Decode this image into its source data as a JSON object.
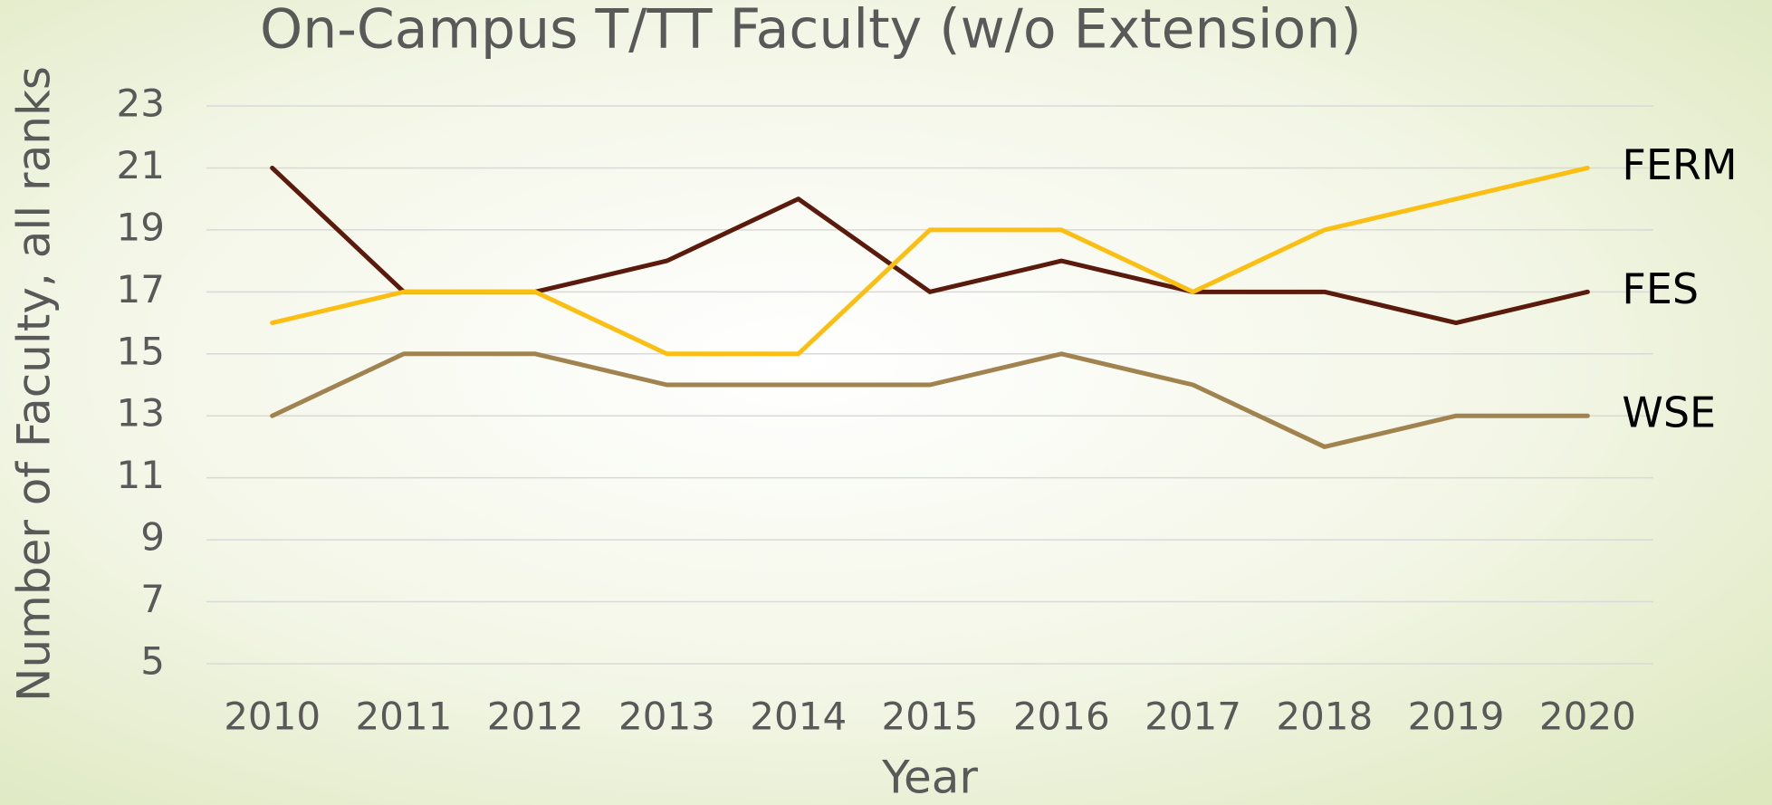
{
  "chart_data": {
    "type": "line",
    "title": "On-Campus T/TT Faculty (w/o Extension)",
    "xlabel": "Year",
    "ylabel": "Number of Faculty, all ranks",
    "categories": [
      "2010",
      "2011",
      "2012",
      "2013",
      "2014",
      "2015",
      "2016",
      "2017",
      "2018",
      "2019",
      "2020"
    ],
    "series": [
      {
        "name": "FES",
        "color": "#5a1a0c",
        "values": [
          21,
          17,
          17,
          18,
          20,
          17,
          18,
          17,
          17,
          16,
          17
        ]
      },
      {
        "name": "FERM",
        "color": "#fbbf14",
        "values": [
          16,
          17,
          17,
          15,
          15,
          19,
          19,
          17,
          19,
          20,
          21
        ]
      },
      {
        "name": "WSE",
        "color": "#a0834f",
        "values": [
          13,
          15,
          15,
          14,
          14,
          14,
          15,
          14,
          12,
          13,
          13
        ]
      }
    ],
    "ylim": [
      5,
      23
    ],
    "yticks": [
      5,
      7,
      9,
      11,
      13,
      15,
      17,
      19,
      21,
      23
    ],
    "grid": true
  }
}
